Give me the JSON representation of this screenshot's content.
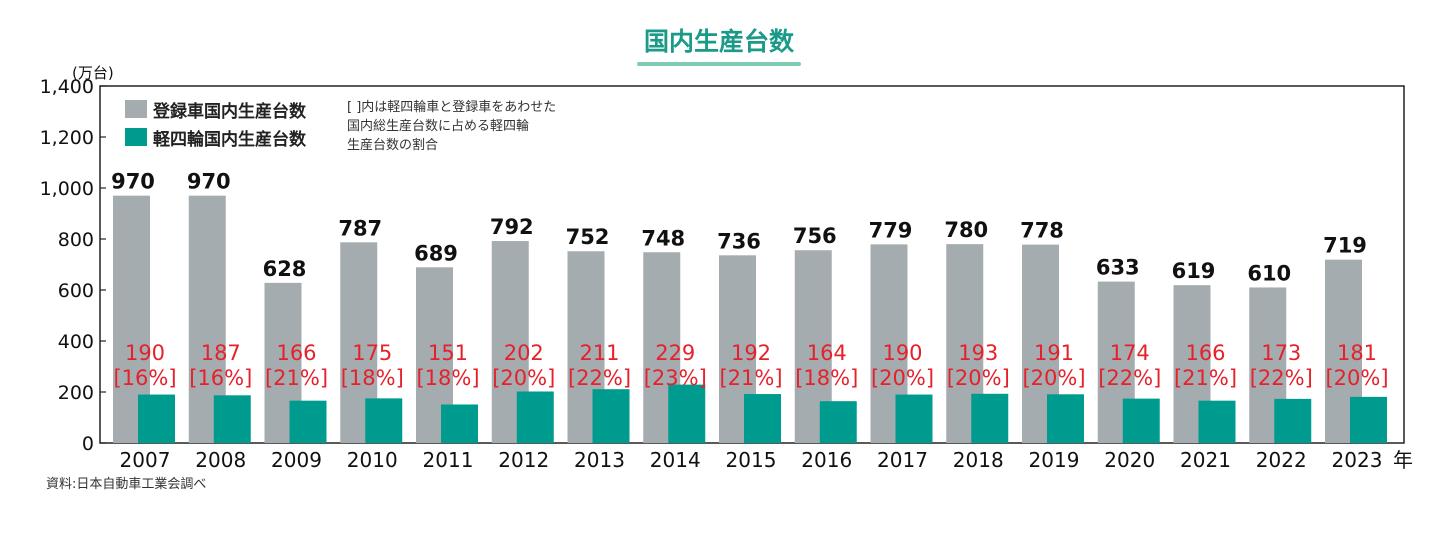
{
  "chart_data": {
    "type": "bar",
    "title": "国内生産台数",
    "ylabel": "(万台)",
    "xlabel_unit": "年",
    "ylim": [
      0,
      1400
    ],
    "yticks": [
      "0",
      "200",
      "400",
      "600",
      "800",
      "1,000",
      "1,200",
      "1,400"
    ],
    "grid": false,
    "legend_position": "top-left",
    "categories": [
      "2007",
      "2008",
      "2009",
      "2010",
      "2011",
      "2012",
      "2013",
      "2014",
      "2015",
      "2016",
      "2017",
      "2018",
      "2019",
      "2020",
      "2021",
      "2022",
      "2023"
    ],
    "series": [
      {
        "name": "登録車国内生産台数",
        "color": "#a5acb0",
        "values": [
          970,
          970,
          628,
          787,
          689,
          792,
          752,
          748,
          736,
          756,
          779,
          780,
          778,
          633,
          619,
          610,
          719
        ]
      },
      {
        "name": "軽四輪国内生産台数",
        "color": "#009b8f",
        "values": [
          190,
          187,
          166,
          175,
          151,
          202,
          211,
          229,
          192,
          164,
          190,
          193,
          191,
          174,
          166,
          173,
          181
        ],
        "share_labels": [
          "[16%]",
          "[16%]",
          "[21%]",
          "[18%]",
          "[18%]",
          "[20%]",
          "[22%]",
          "[23%]",
          "[21%]",
          "[18%]",
          "[20%]",
          "[20%]",
          "[20%]",
          "[22%]",
          "[21%]",
          "[22%]",
          "[20%]"
        ]
      }
    ],
    "note_lines": [
      "[ ]内は軽四輪車と登録車をあわせた",
      "国内総生産台数に占める軽四輪",
      "生産台数の割合"
    ],
    "source": "資料:日本自動車工業会調べ"
  },
  "colors": {
    "title": "#1a9a88",
    "title_underline": "#7fcbb2",
    "label_red": "#e5212b"
  }
}
